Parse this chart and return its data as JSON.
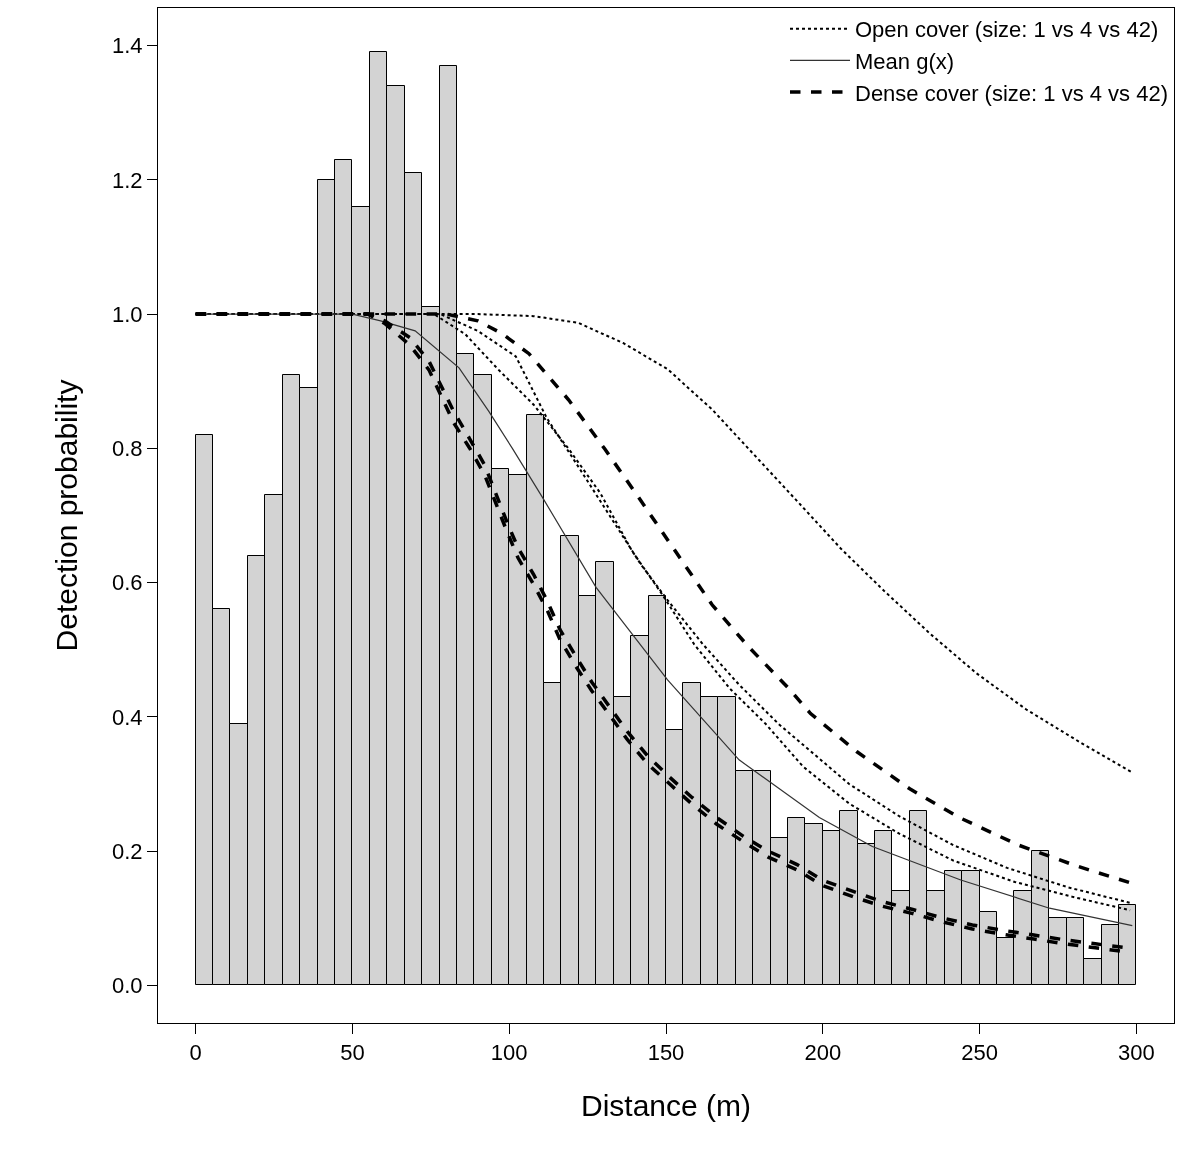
{
  "chart_data": {
    "type": "histogram",
    "xlabel": "Distance (m)",
    "ylabel": "Detection probability",
    "color": "#d3d3d3",
    "bins": [
      0,
      5.56,
      11.11,
      16.67,
      22.22,
      27.78,
      33.33,
      38.89,
      44.44,
      50,
      55.56,
      61.11,
      66.67,
      72.22,
      77.78,
      83.33,
      88.89,
      94.44,
      100,
      105.56,
      111.11,
      116.67,
      122.22,
      127.78,
      133.33,
      138.89,
      144.44,
      150,
      155.56,
      161.11,
      166.67,
      172.22,
      177.78,
      183.33,
      188.89,
      194.44,
      200,
      205.56,
      211.11,
      216.67,
      222.22,
      227.78,
      233.33,
      238.89,
      244.44,
      250,
      255.56,
      261.11,
      266.67,
      272.22,
      277.78,
      283.33,
      288.89,
      294.44,
      300
    ],
    "values": [
      0.82,
      0.56,
      0.39,
      0.64,
      0.73,
      0.91,
      0.89,
      1.2,
      1.23,
      1.16,
      1.39,
      1.34,
      1.21,
      1.01,
      1.37,
      0.94,
      0.91,
      0.77,
      0.76,
      0.85,
      0.45,
      0.67,
      0.58,
      0.63,
      0.43,
      0.52,
      0.58,
      0.38,
      0.45,
      0.43,
      0.43,
      0.32,
      0.32,
      0.22,
      0.25,
      0.24,
      0.23,
      0.26,
      0.21,
      0.23,
      0.14,
      0.26,
      0.14,
      0.17,
      0.17,
      0.11,
      0.07,
      0.14,
      0.2,
      0.1,
      0.1,
      0.04,
      0.09,
      0.12
    ],
    "series": [
      {
        "type": "line",
        "name": "Open cover (size: 1 vs 4 vs 42)",
        "color": "#000000",
        "line_style": "dotted",
        "x": [
          0,
          50,
          90,
          107.8,
          122,
          136.3,
          150.5,
          164.7,
          179,
          192.5,
          205.9,
          219.5,
          234.2,
          249,
          264.9,
          282.1,
          298.7
        ],
        "values": [
          1,
          1,
          1,
          0.997,
          0.987,
          0.957,
          0.918,
          0.858,
          0.786,
          0.718,
          0.65,
          0.588,
          0.524,
          0.465,
          0.411,
          0.362,
          0.317
        ]
      },
      {
        "type": "line",
        "color": "#000000",
        "line_style": "dotted",
        "x": [
          0,
          50,
          78,
          90,
          102.1,
          112,
          122,
          132,
          142,
          150.5,
          161.8,
          173.3,
          186,
          197.6,
          208.4,
          224.4,
          241.6,
          258.8,
          278.3,
          298
        ],
        "values": [
          1,
          1,
          1,
          0.975,
          0.937,
          0.845,
          0.773,
          0.7,
          0.627,
          0.574,
          0.508,
          0.448,
          0.389,
          0.343,
          0.3,
          0.252,
          0.209,
          0.175,
          0.146,
          0.123
        ]
      },
      {
        "type": "line",
        "color": "#000000",
        "line_style": "dotted",
        "x": [
          0,
          50,
          76,
          86,
          96.4,
          107.8,
          119,
          129.1,
          139.2,
          149,
          159,
          170.4,
          181.9,
          193.7,
          208.4,
          224.4,
          241.6,
          261.3,
          279.6,
          298
        ],
        "values": [
          1,
          1,
          1,
          0.97,
          0.918,
          0.865,
          0.799,
          0.733,
          0.647,
          0.581,
          0.508,
          0.442,
          0.389,
          0.326,
          0.271,
          0.226,
          0.186,
          0.154,
          0.132,
          0.112
        ]
      },
      {
        "type": "line",
        "name": "Mean g(x)",
        "color": "#333333",
        "line_style": "solid",
        "x": [
          0,
          50,
          59,
          70,
          84,
          93.5,
          101,
          110.6,
          127.7,
          150.5,
          173.3,
          198.9,
          215.8,
          244,
          272.3,
          298.7
        ],
        "values": [
          1,
          1,
          0.99,
          0.975,
          0.92,
          0.855,
          0.8,
          0.727,
          0.593,
          0.455,
          0.336,
          0.25,
          0.207,
          0.157,
          0.115,
          0.089
        ]
      },
      {
        "type": "line",
        "name": "Dense cover (size: 1 vs 4 vs 42)",
        "color": "#000000",
        "line_style": "dashed",
        "x": [
          0,
          50,
          80,
          90,
          97.7,
          106.3,
          119,
          130.5,
          142,
          153.4,
          164.7,
          176.2,
          189,
          196.1,
          210.9,
          228,
          244,
          262.4,
          280.9,
          299.3
        ],
        "values": [
          1,
          1,
          1,
          0.99,
          0.971,
          0.941,
          0.872,
          0.799,
          0.722,
          0.644,
          0.567,
          0.505,
          0.443,
          0.405,
          0.348,
          0.292,
          0.249,
          0.209,
          0.178,
          0.151
        ]
      },
      {
        "type": "line",
        "color": "#000000",
        "line_style": "dashed",
        "x": [
          0,
          55,
          60.3,
          68.3,
          74.4,
          82.3,
          87.3,
          92.2,
          99.3,
          102.8,
          107.8,
          112.2,
          116.2,
          121.3,
          126.3,
          132,
          137.7,
          144.1,
          151.2,
          158.3,
          166.2,
          174.7,
          182.6,
          191.8,
          199.8,
          209.7,
          218.9,
          228.7,
          237.8,
          247.7,
          257.6,
          267.3,
          277,
          286.9,
          296.8
        ],
        "values": [
          1,
          1,
          0.986,
          0.954,
          0.917,
          0.838,
          0.801,
          0.76,
          0.676,
          0.637,
          0.597,
          0.558,
          0.515,
          0.475,
          0.439,
          0.403,
          0.366,
          0.33,
          0.3,
          0.27,
          0.24,
          0.214,
          0.191,
          0.172,
          0.149,
          0.132,
          0.118,
          0.107,
          0.095,
          0.084,
          0.076,
          0.069,
          0.062,
          0.056,
          0.05
        ]
      },
      {
        "type": "line",
        "color": "#000000",
        "line_style": "dashed",
        "x": [
          0,
          55,
          60.3,
          68.3,
          74.4,
          82.3,
          87.3,
          92.2,
          99.3,
          102.8,
          107.8,
          112.2,
          116.2,
          121.3,
          126.3,
          132,
          137.7,
          144.1,
          151.2,
          158.3,
          166.2,
          174.7,
          182.6,
          191.8,
          199.8,
          209.7,
          218.9,
          228.7,
          237.8,
          247.7,
          257.6,
          267.3,
          277,
          286.9,
          296.8
        ],
        "values": [
          1,
          1,
          0.99,
          0.965,
          0.93,
          0.855,
          0.815,
          0.775,
          0.69,
          0.652,
          0.612,
          0.572,
          0.53,
          0.49,
          0.452,
          0.415,
          0.378,
          0.342,
          0.31,
          0.28,
          0.25,
          0.222,
          0.2,
          0.18,
          0.157,
          0.14,
          0.125,
          0.113,
          0.101,
          0.09,
          0.082,
          0.075,
          0.068,
          0.062,
          0.056
        ]
      }
    ],
    "xlim": [
      -12,
      312
    ],
    "ylim": [
      -0.056,
      1.456
    ],
    "xticks": [
      0,
      50,
      100,
      150,
      200,
      250,
      300
    ],
    "yticks": [
      {
        "value": 0,
        "label": "0.0"
      },
      0.2,
      0.4,
      0.6,
      0.8,
      {
        "value": 1,
        "label": "1.0"
      },
      1.2,
      1.4
    ],
    "grid": false,
    "legend": "top right"
  }
}
